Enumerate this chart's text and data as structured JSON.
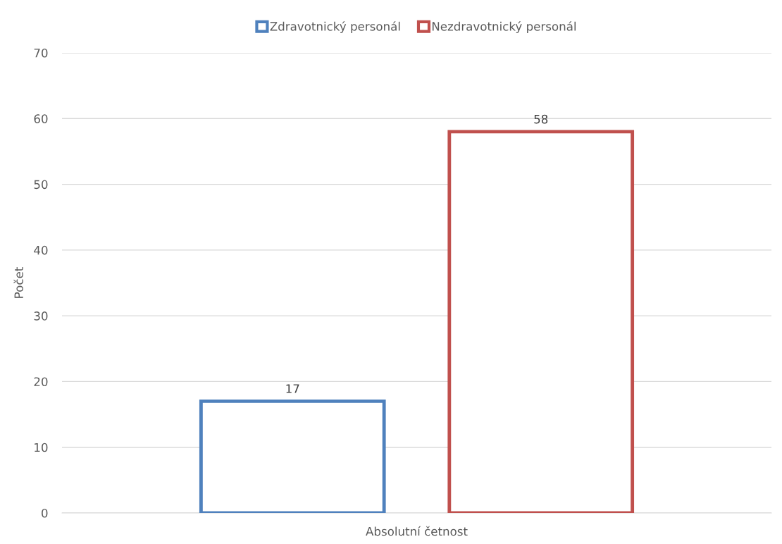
{
  "chart_data": {
    "type": "bar",
    "categories": [
      "Absolutní četnost"
    ],
    "ylabel": "Počet",
    "series": [
      {
        "name": "Zdravotnický personál",
        "color": "#4f81bd",
        "values": [
          17
        ]
      },
      {
        "name": "Nezdravotnický personál",
        "color": "#c0504d",
        "values": [
          58
        ]
      }
    ],
    "ylim": [
      0,
      70
    ],
    "yticks": [
      0,
      10,
      20,
      30,
      40,
      50,
      60,
      70
    ],
    "grid": "y",
    "legend": "top",
    "data_labels": true
  }
}
